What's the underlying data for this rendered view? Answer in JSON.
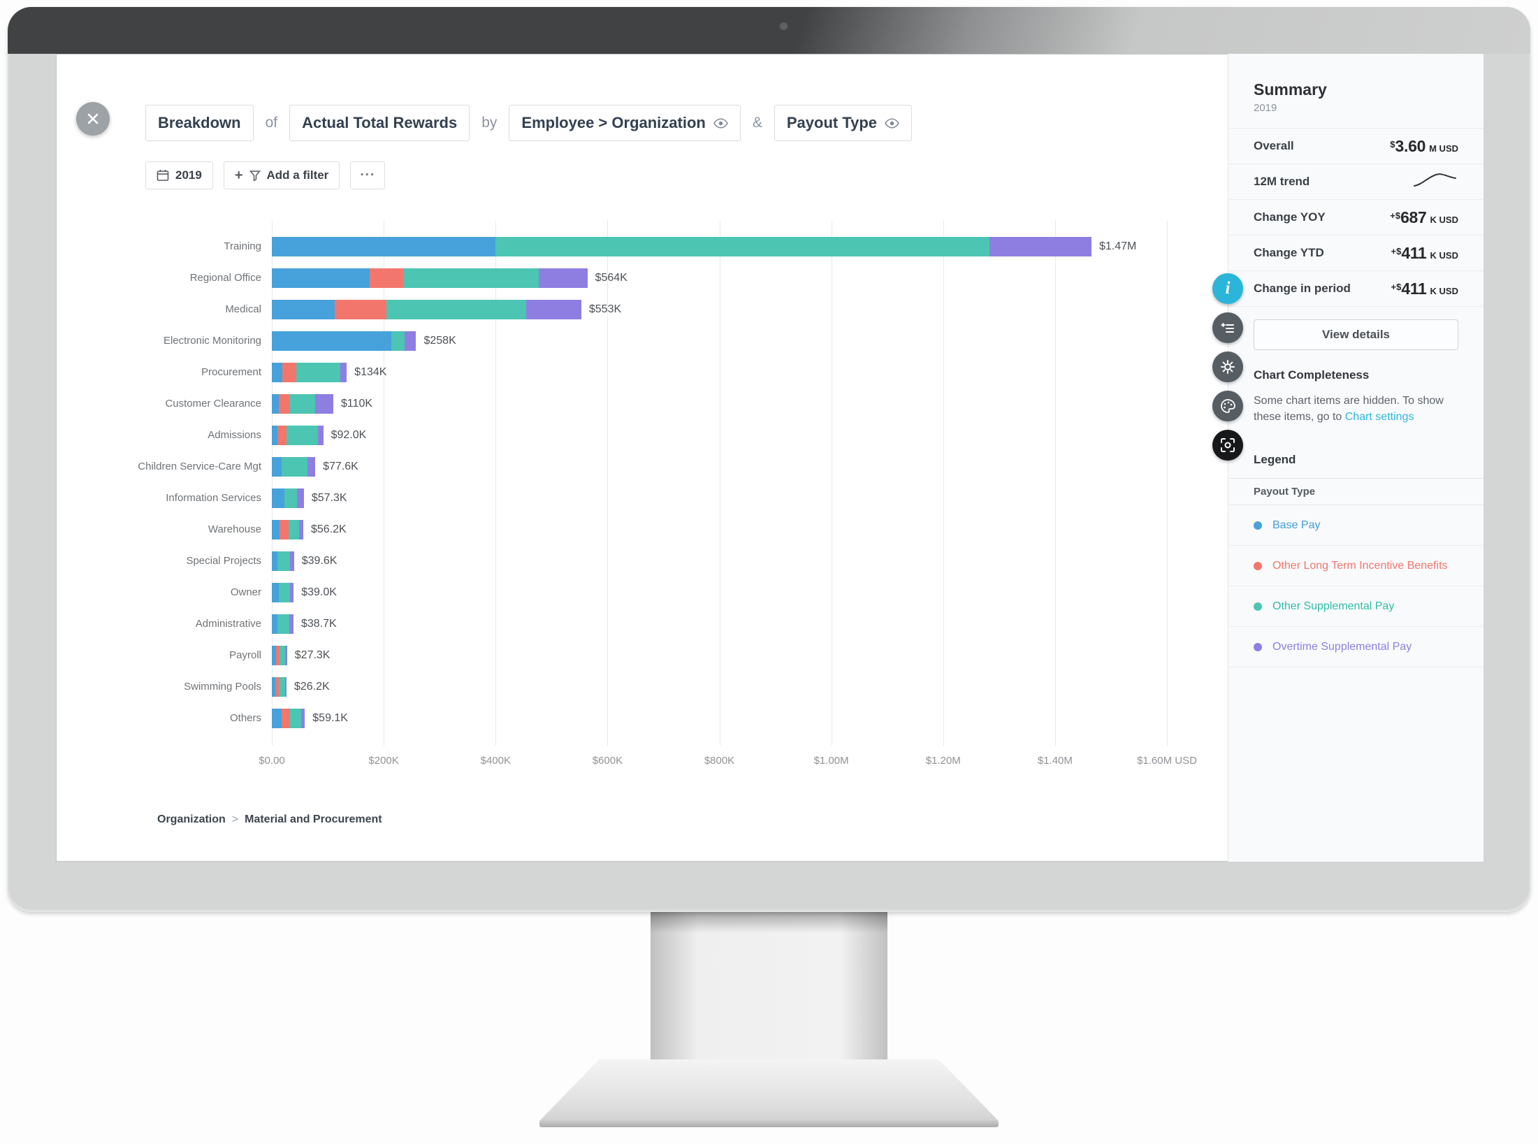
{
  "header": {
    "segments": [
      {
        "kind": "chip",
        "label": "Breakdown",
        "eye_icon": false
      },
      {
        "kind": "text",
        "label": "of"
      },
      {
        "kind": "chip",
        "label": "Actual Total Rewards",
        "eye_icon": false
      },
      {
        "kind": "text",
        "label": "by"
      },
      {
        "kind": "chip",
        "label": "Employee > Organization",
        "eye_icon": true
      },
      {
        "kind": "text",
        "label": "&"
      },
      {
        "kind": "chip",
        "label": "Payout Type",
        "eye_icon": true
      }
    ]
  },
  "filter_bar": {
    "year_chip": {
      "icon": "calendar-icon",
      "label": "2019"
    },
    "add_filter_chip": {
      "icons": [
        "plus-icon",
        "funnel-icon"
      ],
      "label": "Add a filter"
    },
    "more_chip": {
      "label": "···"
    }
  },
  "chart_data": {
    "type": "bar",
    "orientation": "horizontal",
    "stacked": true,
    "title": "Breakdown of Actual Total Rewards by Employee > Organization & Payout Type",
    "value_unit": "USD (thousands)",
    "xlim_thousands": [
      0,
      1600
    ],
    "x_ticks": [
      "$0.00",
      "$200K",
      "$400K",
      "$600K",
      "$800K",
      "$1.00M",
      "$1.20M",
      "$1.40M",
      "$1.60M USD"
    ],
    "grid": true,
    "legend_position": "right-panel",
    "categories": [
      "Training",
      "Regional Office",
      "Medical",
      "Electronic Monitoring",
      "Procurement",
      "Customer Clearance",
      "Admissions",
      "Children Service-Care Mgt",
      "Information Services",
      "Warehouse",
      "Special Projects",
      "Owner",
      "Administrative",
      "Payroll",
      "Swimming Pools",
      "Others"
    ],
    "series": [
      {
        "name": "Base Pay",
        "color": "#47a1db",
        "values": [
          400,
          175,
          112,
          214,
          19,
          12,
          10,
          17,
          23,
          14,
          10,
          12,
          10,
          7,
          6,
          17
        ]
      },
      {
        "name": "Other Long Term Incentive Benefits",
        "color": "#f3766d",
        "values": [
          0,
          60,
          93,
          0,
          25,
          19,
          16,
          0,
          0,
          16,
          0,
          0,
          0,
          7,
          7,
          14
        ]
      },
      {
        "name": "Other Supplemental Pay",
        "color": "#4cc5b2",
        "values": [
          883,
          242,
          249,
          23,
          78,
          47,
          56,
          46.6,
          22.3,
          19.2,
          22.6,
          20,
          21.7,
          10.3,
          10.2,
          21.1
        ]
      },
      {
        "name": "Overtime Supplemental Pay",
        "color": "#8f7ee2",
        "values": [
          182,
          87,
          99,
          21,
          12,
          32,
          10,
          14,
          12,
          7,
          7,
          7,
          7,
          3,
          3,
          7
        ]
      }
    ],
    "total_labels": [
      "$1.47M",
      "$564K",
      "$553K",
      "$258K",
      "$134K",
      "$110K",
      "$92.0K",
      "$77.6K",
      "$57.3K",
      "$56.2K",
      "$39.6K",
      "$39.0K",
      "$38.7K",
      "$27.3K",
      "$26.2K",
      "$59.1K"
    ]
  },
  "breadcrumb": {
    "root": "Organization",
    "separator": ">",
    "leaf": "Material and Procurement"
  },
  "summary": {
    "title": "Summary",
    "period": "2019",
    "rows": [
      {
        "label": "Overall",
        "prefix": "$",
        "value": "3.60",
        "suffix": "M USD"
      },
      {
        "label": "12M trend",
        "sparkline": true
      },
      {
        "label": "Change YOY",
        "prefix": "+$",
        "value": "687",
        "suffix": "K USD"
      },
      {
        "label": "Change YTD",
        "prefix": "+$",
        "value": "411",
        "suffix": "K USD"
      },
      {
        "label": "Change in period",
        "prefix": "+$",
        "value": "411",
        "suffix": "K USD"
      }
    ],
    "view_details_label": "View details",
    "completeness": {
      "title": "Chart Completeness",
      "message": "Some chart items are hidden. To show these items, go to ",
      "link_label": "Chart settings"
    },
    "legend": {
      "title": "Legend",
      "group": "Payout Type",
      "items": [
        {
          "label": "Base Pay",
          "color": "#47a1db",
          "text_color": "#3b9fd9"
        },
        {
          "label": "Other Long Term Incentive Benefits",
          "color": "#f3766d",
          "text_color": "#f3766d"
        },
        {
          "label": "Other Supplemental Pay",
          "color": "#4cc5b2",
          "text_color": "#2fbda8"
        },
        {
          "label": "Overtime Supplemental Pay",
          "color": "#8f7ee2",
          "text_color": "#8f7ee2"
        }
      ]
    }
  },
  "side_toolbar": {
    "buttons": [
      {
        "icon": "info-icon",
        "bg": "#2ab5d9"
      },
      {
        "icon": "add-to-list-icon",
        "bg": "#565d63"
      },
      {
        "icon": "gear-icon",
        "bg": "#565d63"
      },
      {
        "icon": "palette-icon",
        "bg": "#565d63"
      },
      {
        "icon": "screenshot-icon",
        "bg": "#17181a"
      }
    ]
  },
  "colors": {
    "accent_cyan": "#2ab5d9",
    "sidebar_bg": "#f9fafc",
    "grid": "#e8e9ea"
  }
}
